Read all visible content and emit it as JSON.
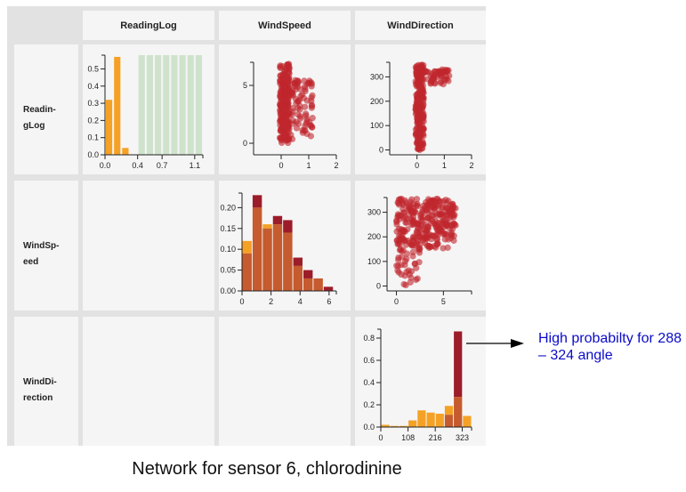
{
  "headers": {
    "col1": "ReadingLog",
    "col2": "WindSpeed",
    "col3": "WindDirection"
  },
  "row_labels": {
    "row1": "Readin-\ngLog",
    "row2": "WindSp-\need",
    "row3": "WindDi-\nrection"
  },
  "annotation": "High probabilty for 288 – 324 angle",
  "caption": "Network for sensor 6, chlorodinine",
  "colors": {
    "orange": "#f5a126",
    "red": "#9c1c2a",
    "point": "#c0272d",
    "green": "#cfe3cc",
    "annotation": "#0b0bc8"
  },
  "chart_data": [
    {
      "id": "readinglog-hist",
      "type": "bar",
      "title": "ReadingLog",
      "xlim": [
        0,
        1.2
      ],
      "ylim": [
        0,
        0.58
      ],
      "xticks": [
        "0.0",
        "0.4",
        "0.7",
        "1.1"
      ],
      "xtick_values": [
        0,
        0.4,
        0.7,
        1.1
      ],
      "yticks": [
        "0.0",
        "0.1",
        "0.2",
        "0.3",
        "0.4",
        "0.5"
      ],
      "ytick_values": [
        0,
        0.1,
        0.2,
        0.3,
        0.4,
        0.5
      ],
      "bin_width": 0.1,
      "series": [
        {
          "name": "orange",
          "bins": [
            0,
            0.1,
            0.2,
            0.3
          ],
          "values": [
            0.32,
            0.57,
            0.04,
            0.0
          ]
        },
        {
          "name": "green",
          "bins": [
            0.4,
            0.5,
            0.6,
            0.7,
            0.8,
            0.9,
            1.0,
            1.1
          ],
          "values": [
            0.58,
            0.58,
            0.58,
            0.58,
            0.58,
            0.58,
            0.58,
            0.58
          ]
        }
      ]
    },
    {
      "id": "readinglog-windspeed",
      "type": "scatter",
      "xlabel": "ReadingLog",
      "ylabel": "WindSpeed",
      "xlim": [
        -1,
        2
      ],
      "ylim": [
        -1,
        7
      ],
      "xticks": [
        "0",
        "1",
        "2"
      ],
      "xtick_values": [
        0,
        1,
        2
      ],
      "yticks": [
        "0",
        "5"
      ],
      "ytick_values": [
        0,
        5
      ],
      "clusters": [
        {
          "x": [
            -0.05,
            0.3
          ],
          "y": [
            0,
            6.9
          ],
          "n": 230
        },
        {
          "x": [
            0.35,
            1.15
          ],
          "y": [
            0,
            5.6
          ],
          "n": 80
        }
      ]
    },
    {
      "id": "readinglog-winddirection",
      "type": "scatter",
      "xlabel": "ReadingLog",
      "ylabel": "WindDirection",
      "xlim": [
        -1,
        2
      ],
      "ylim": [
        -20,
        360
      ],
      "xticks": [
        "0",
        "1",
        "2"
      ],
      "xtick_values": [
        0,
        1,
        2
      ],
      "yticks": [
        "0",
        "100",
        "200",
        "300"
      ],
      "ytick_values": [
        0,
        100,
        200,
        300
      ],
      "clusters": [
        {
          "x": [
            -0.05,
            0.25
          ],
          "y": [
            0,
            350
          ],
          "n": 240
        },
        {
          "x": [
            0.3,
            1.2
          ],
          "y": [
            270,
            330
          ],
          "n": 50
        }
      ]
    },
    {
      "id": "windspeed-hist",
      "type": "bar",
      "title": "WindSpeed",
      "xlim": [
        0,
        6.5
      ],
      "ylim": [
        0,
        0.235
      ],
      "xticks": [
        "0",
        "2",
        "4",
        "6"
      ],
      "xtick_values": [
        0,
        2,
        4,
        6
      ],
      "yticks": [
        "0.00",
        "0.05",
        "0.10",
        "0.15",
        "0.20"
      ],
      "ytick_values": [
        0,
        0.05,
        0.1,
        0.15,
        0.2
      ],
      "bin_width": 0.7,
      "bins": [
        0,
        0.7,
        1.4,
        2.1,
        2.8,
        3.5,
        4.2,
        4.9,
        5.6
      ],
      "series": [
        {
          "name": "orange",
          "values": [
            0.12,
            0.2,
            0.16,
            0.16,
            0.14,
            0.06,
            0.03,
            0.03,
            0.0
          ]
        },
        {
          "name": "red",
          "values": [
            0.09,
            0.23,
            0.15,
            0.18,
            0.17,
            0.08,
            0.05,
            0.03,
            0.01
          ]
        }
      ]
    },
    {
      "id": "windspeed-winddirection",
      "type": "scatter",
      "xlabel": "WindSpeed",
      "ylabel": "WindDirection",
      "xlim": [
        -1,
        8
      ],
      "ylim": [
        -20,
        360
      ],
      "xticks": [
        "0",
        "5"
      ],
      "xtick_values": [
        0,
        5
      ],
      "yticks": [
        "0",
        "100",
        "200",
        "300"
      ],
      "ytick_values": [
        0,
        100,
        200,
        300
      ],
      "clusters": [
        {
          "x": [
            0,
            6.3
          ],
          "y": [
            150,
            355
          ],
          "n": 300
        },
        {
          "x": [
            0,
            2.5
          ],
          "y": [
            0,
            150
          ],
          "n": 35
        }
      ]
    },
    {
      "id": "winddirection-hist",
      "type": "bar",
      "title": "WindDirection",
      "xlim": [
        0,
        360
      ],
      "ylim": [
        0,
        0.88
      ],
      "xticks": [
        "0",
        "108",
        "216",
        "323"
      ],
      "xtick_values": [
        0,
        108,
        216,
        323
      ],
      "yticks": [
        "0.0",
        "0.2",
        "0.4",
        "0.6",
        "0.8"
      ],
      "ytick_values": [
        0,
        0.2,
        0.4,
        0.6,
        0.8
      ],
      "bin_width": 36,
      "bins": [
        0,
        36,
        72,
        108,
        144,
        180,
        216,
        252,
        288,
        324,
        360
      ],
      "categories": [
        "0–36",
        "36–72",
        "72–108",
        "108–144",
        "144–180",
        "180–216",
        "216–252",
        "252–288",
        "288–324",
        "324–360"
      ],
      "series": [
        {
          "name": "orange",
          "values": [
            0.02,
            0.01,
            0.01,
            0.06,
            0.15,
            0.13,
            0.12,
            0.19,
            0.27,
            0.1
          ]
        },
        {
          "name": "red",
          "values": [
            0,
            0,
            0,
            0,
            0,
            0,
            0,
            0.11,
            0.86,
            0
          ]
        }
      ]
    }
  ]
}
